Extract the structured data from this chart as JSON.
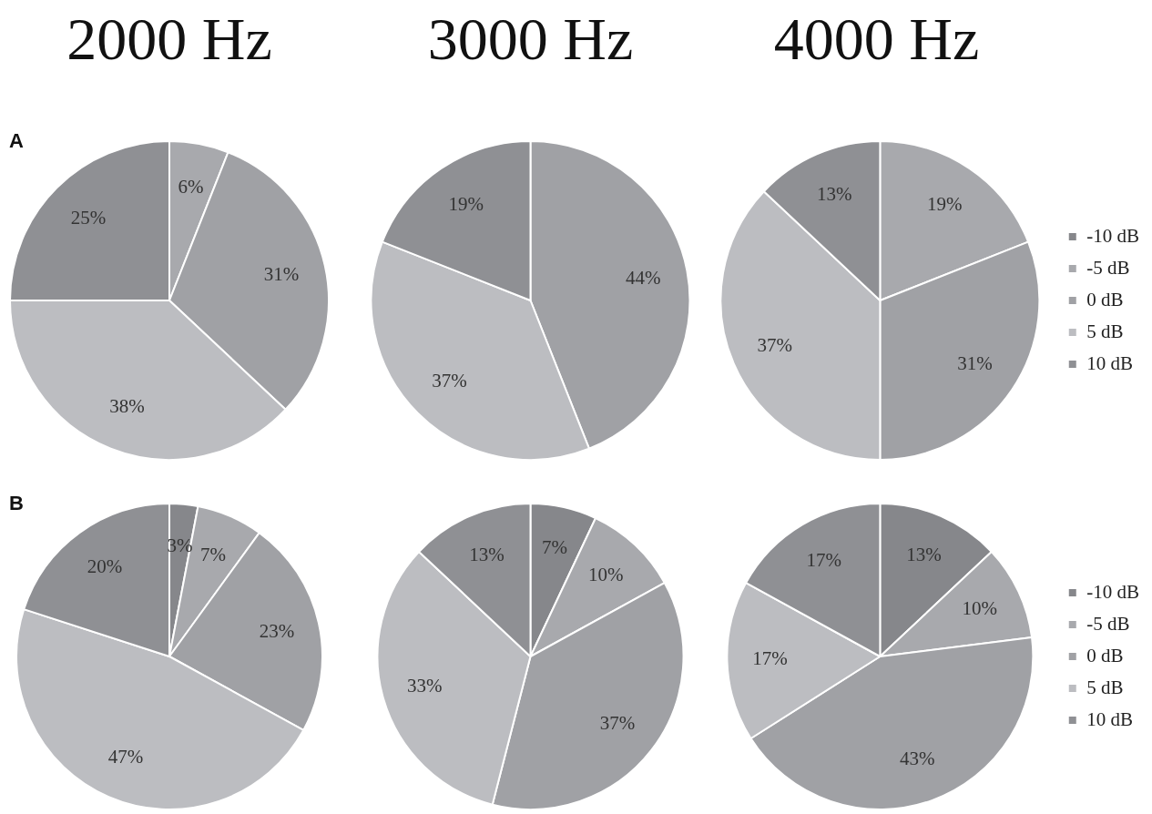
{
  "chart_data": [
    {
      "type": "pie",
      "title": "2000 Hz",
      "annotations": [
        "A"
      ],
      "categories": [
        null,
        null,
        null,
        null,
        null
      ],
      "values": [
        0,
        6,
        31,
        38,
        25
      ],
      "value_labels": [
        null,
        "6%",
        "31%",
        "38%",
        "25%"
      ],
      "colors": [
        "#86878b",
        "#a8a9ad",
        "#a0a1a5",
        "#bcbdc1",
        "#8f9094"
      ],
      "legend": false
    },
    {
      "type": "pie",
      "title": "3000 Hz",
      "categories": [
        null,
        null,
        null,
        null,
        null
      ],
      "values": [
        0,
        0,
        44,
        37,
        19
      ],
      "value_labels": [
        null,
        null,
        "44%",
        "37%",
        "19%"
      ],
      "colors": [
        "#86878b",
        "#a8a9ad",
        "#a0a1a5",
        "#bcbdc1",
        "#8f9094"
      ],
      "legend": false
    },
    {
      "type": "pie",
      "title": "4000 Hz",
      "categories": [
        "-10 dB",
        "-5 dB",
        "0 dB",
        "5 dB",
        "10 dB"
      ],
      "values": [
        0,
        19,
        31,
        37,
        13
      ],
      "value_labels": [
        null,
        "19%",
        "31%",
        "37%",
        "13%"
      ],
      "colors": [
        "#86878b",
        "#a8a9ad",
        "#a0a1a5",
        "#bcbdc1",
        "#8f9094"
      ],
      "legend": "right"
    },
    {
      "type": "pie",
      "annotations": [
        "B"
      ],
      "categories": [
        null,
        null,
        null,
        null,
        null
      ],
      "values": [
        3,
        7,
        23,
        47,
        20
      ],
      "value_labels": [
        "3%",
        "7%",
        "23%",
        "47%",
        "20%"
      ],
      "colors": [
        "#86878b",
        "#a8a9ad",
        "#a0a1a5",
        "#bcbdc1",
        "#8f9094"
      ],
      "legend": false
    },
    {
      "type": "pie",
      "categories": [
        null,
        null,
        null,
        null,
        null
      ],
      "values": [
        7,
        10,
        37,
        33,
        13
      ],
      "value_labels": [
        "7%",
        "10%",
        "37%",
        "33%",
        "13%"
      ],
      "colors": [
        "#86878b",
        "#a8a9ad",
        "#a0a1a5",
        "#bcbdc1",
        "#8f9094"
      ],
      "legend": false
    },
    {
      "type": "pie",
      "categories": [
        "-10 dB",
        "-5 dB",
        "0 dB",
        "5 dB",
        "10 dB"
      ],
      "values": [
        13,
        10,
        43,
        17,
        17
      ],
      "value_labels": [
        "13%",
        "10%",
        "43%",
        "17%",
        "17%"
      ],
      "colors": [
        "#86878b",
        "#a8a9ad",
        "#a0a1a5",
        "#bcbdc1",
        "#8f9094"
      ],
      "legend": "right"
    }
  ]
}
